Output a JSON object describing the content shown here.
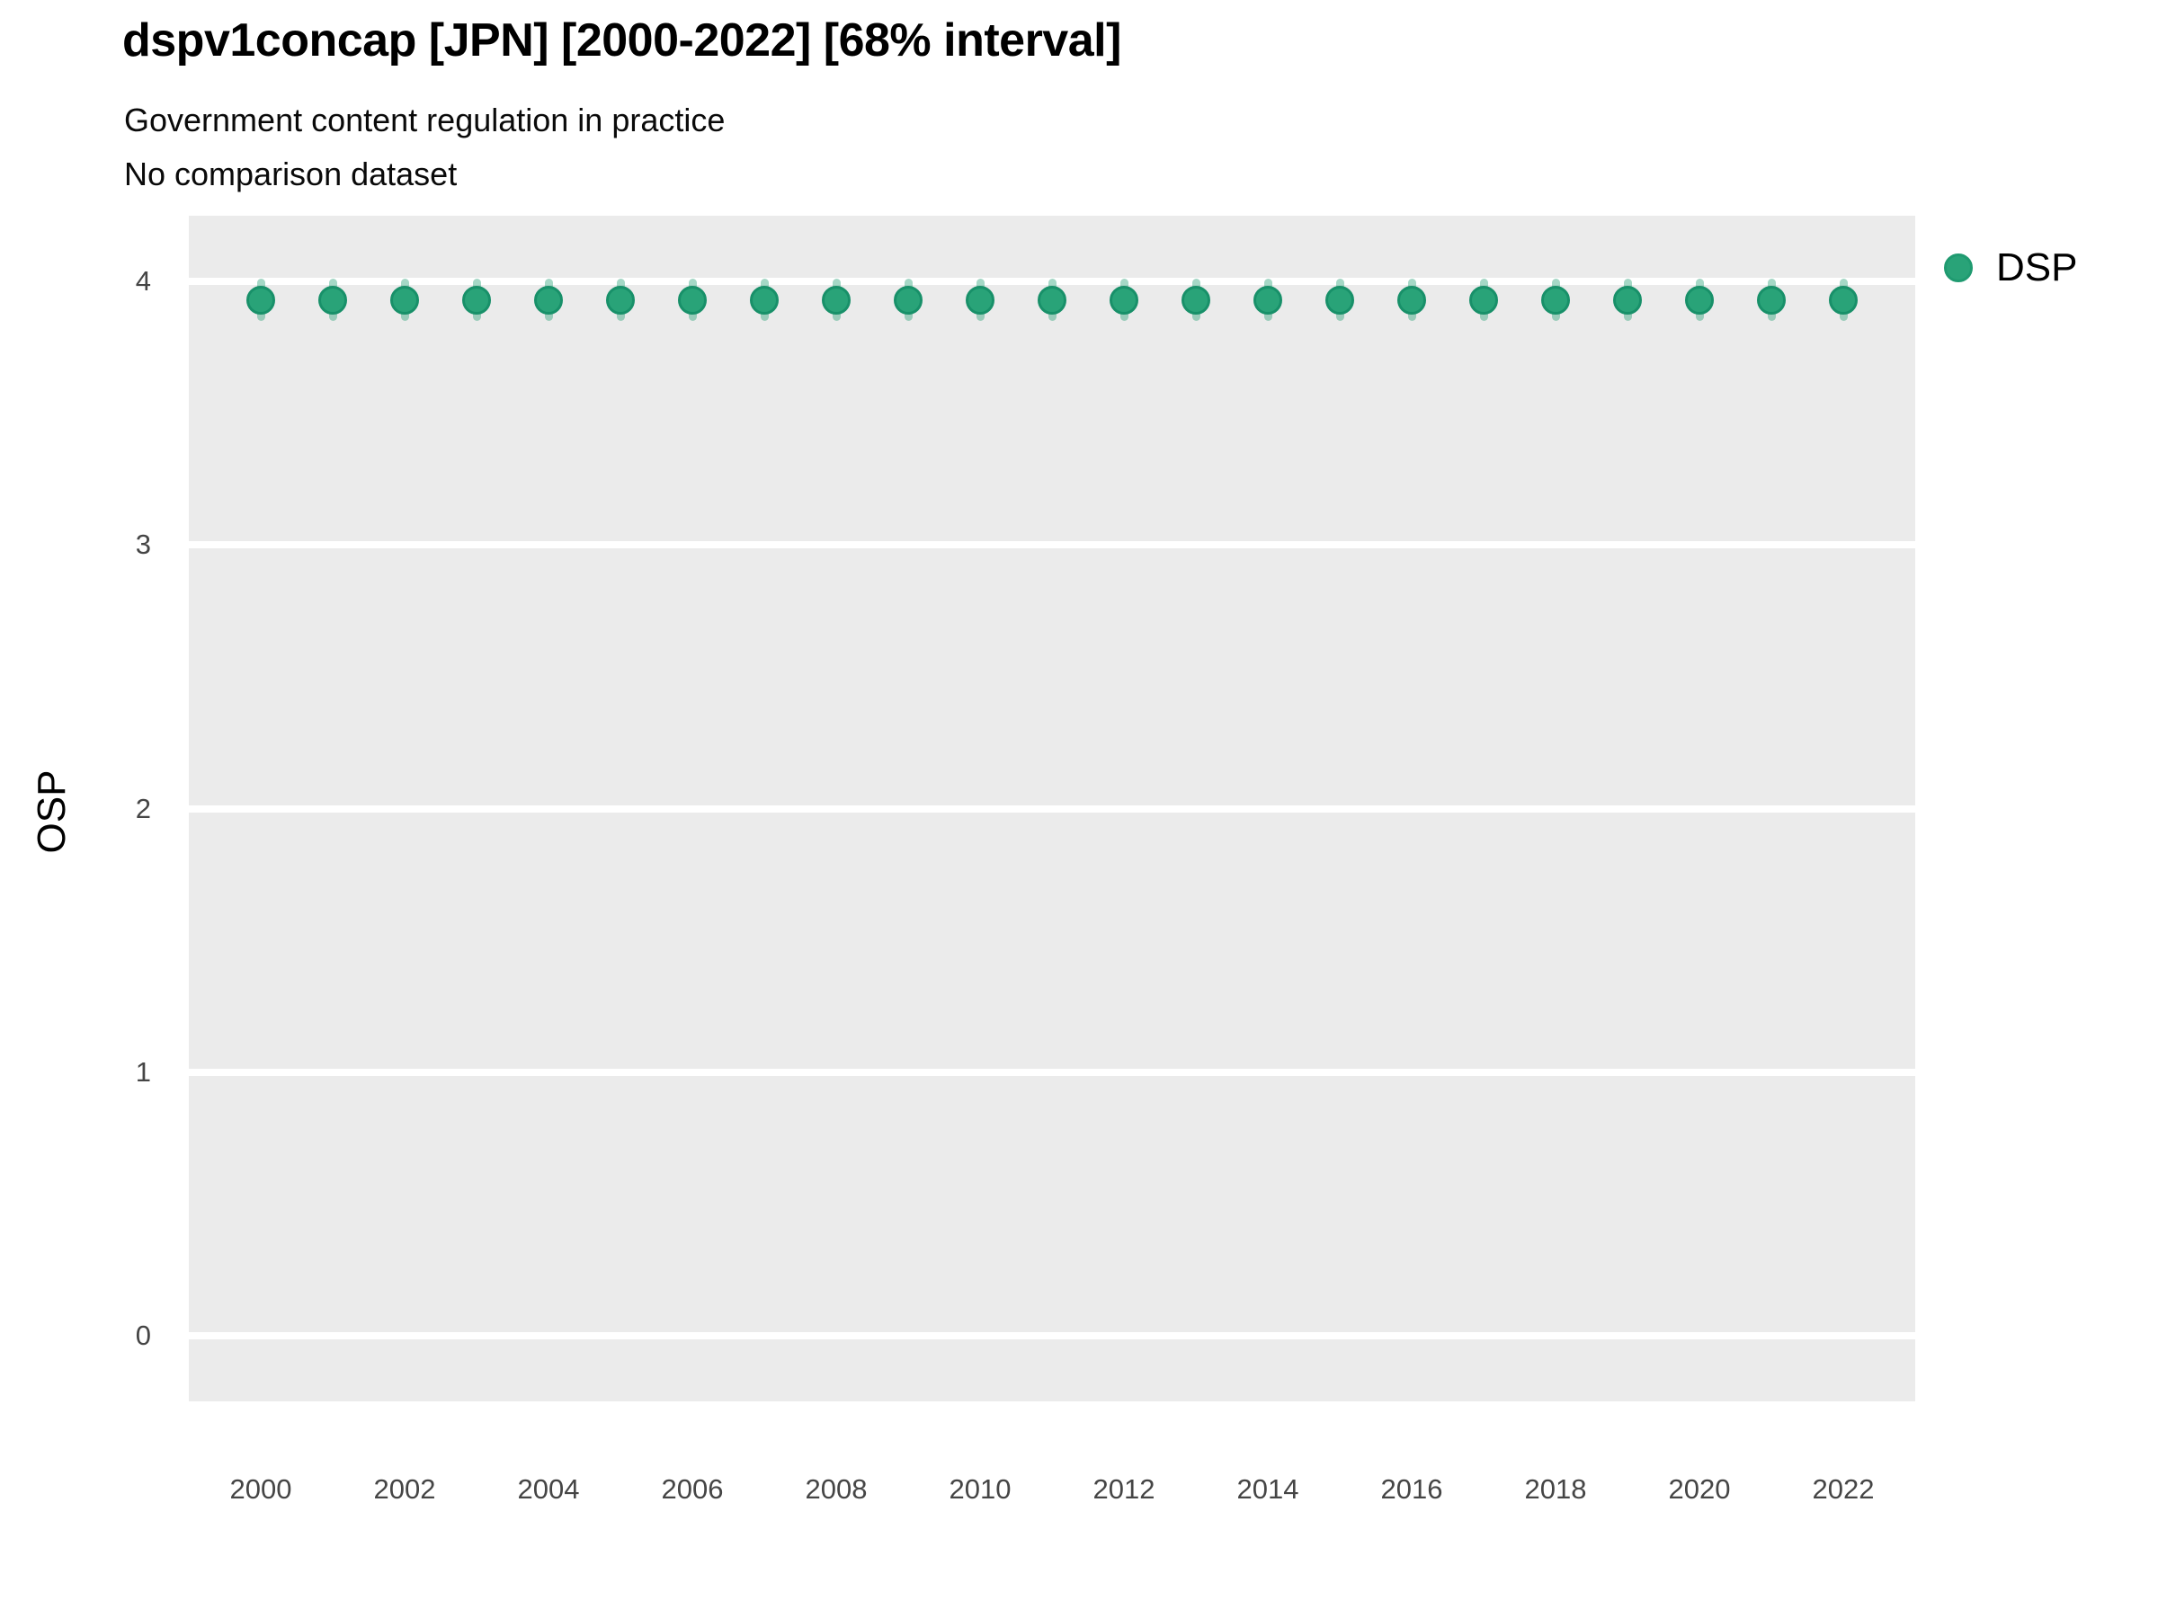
{
  "header": {
    "title": "dspv1concap [JPN] [2000-2022] [68% interval]",
    "subtitle_line1": "Government content regulation in practice",
    "subtitle_line2": "No comparison dataset"
  },
  "axes": {
    "y_label": "OSP",
    "x_label": ""
  },
  "legend": {
    "position": "right-top",
    "items": [
      {
        "label": "DSP",
        "color": "#29a378",
        "swatch": "filled-circle"
      }
    ]
  },
  "colors": {
    "point_fill": "#29a378",
    "point_border": "#189069",
    "interval_bar": "rgba(41,163,120,0.42)",
    "panel_background": "#ebebeb",
    "gridline": "#ffffff",
    "tick_text": "#454545",
    "title_text": "#000000"
  },
  "chart_data": {
    "type": "scatter",
    "variant": "point-estimate-with-interval",
    "title": "dspv1concap [JPN] [2000-2022] [68% interval]",
    "subtitle": [
      "Government content regulation in practice",
      "No comparison dataset"
    ],
    "interval": "68%",
    "xlabel": "",
    "ylabel": "OSP",
    "xlim": [
      1999,
      2023
    ],
    "ylim": [
      -0.25,
      4.25
    ],
    "yticks": [
      0,
      1,
      2,
      3,
      4
    ],
    "xticks": [
      2000,
      2002,
      2004,
      2006,
      2008,
      2010,
      2012,
      2014,
      2016,
      2018,
      2020,
      2022
    ],
    "grid": "horizontal-major-only",
    "legend_position": "right-top",
    "series": [
      {
        "name": "DSP",
        "color": "#29a378",
        "x": [
          2000,
          2001,
          2002,
          2003,
          2004,
          2005,
          2006,
          2007,
          2008,
          2009,
          2010,
          2011,
          2012,
          2013,
          2014,
          2015,
          2016,
          2017,
          2018,
          2019,
          2020,
          2021,
          2022
        ],
        "estimate": [
          3.93,
          3.93,
          3.93,
          3.93,
          3.93,
          3.93,
          3.93,
          3.93,
          3.93,
          3.93,
          3.93,
          3.93,
          3.93,
          3.93,
          3.93,
          3.93,
          3.93,
          3.93,
          3.93,
          3.93,
          3.93,
          3.93,
          3.93
        ],
        "lower": [
          3.85,
          3.85,
          3.85,
          3.85,
          3.85,
          3.85,
          3.85,
          3.85,
          3.85,
          3.85,
          3.85,
          3.85,
          3.85,
          3.85,
          3.85,
          3.85,
          3.85,
          3.85,
          3.85,
          3.85,
          3.85,
          3.85,
          3.85
        ],
        "upper": [
          4.01,
          4.01,
          4.01,
          4.01,
          4.01,
          4.01,
          4.01,
          4.01,
          4.01,
          4.01,
          4.01,
          4.01,
          4.01,
          4.01,
          4.01,
          4.01,
          4.01,
          4.01,
          4.01,
          4.01,
          4.01,
          4.01,
          4.01
        ]
      }
    ]
  }
}
